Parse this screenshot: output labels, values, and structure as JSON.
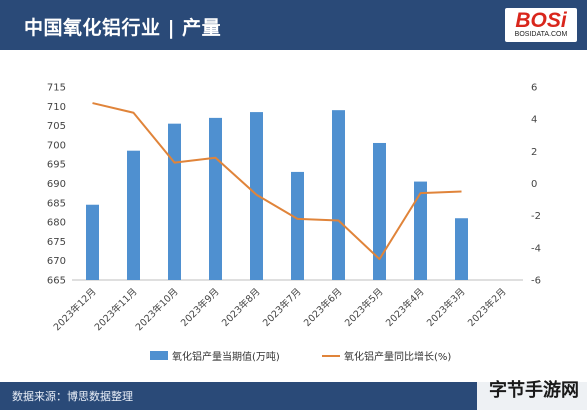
{
  "header": {
    "title": "中国氧化铝行业 | 产量",
    "logo_text": "BOSi",
    "logo_sub": "BOSIDATA.COM"
  },
  "footer": {
    "source": "数据来源：博思数据整理"
  },
  "corner": {
    "text": "字节手游网"
  },
  "colors": {
    "header_bg": "#2a4a78",
    "bar": "#4f90d0",
    "line": "#e0843a",
    "logo_red": "#d9261c"
  },
  "chart_data": {
    "type": "bar",
    "categories": [
      "2023年12月",
      "2023年11月",
      "2023年10月",
      "2023年9月",
      "2023年8月",
      "2023年7月",
      "2023年6月",
      "2023年5月",
      "2023年4月",
      "2023年3月",
      "2023年2月"
    ],
    "series": [
      {
        "name": "氧化铝产量当期值(万吨)",
        "type": "bar",
        "axis": "left",
        "values": [
          684.5,
          698.5,
          705.5,
          707,
          708.5,
          693,
          709,
          700.5,
          690.5,
          681,
          null
        ]
      },
      {
        "name": "氧化铝产量同比增长(%)",
        "type": "line",
        "axis": "right",
        "values": [
          5.0,
          4.4,
          1.3,
          1.6,
          -0.7,
          -2.2,
          -2.3,
          -4.7,
          -0.6,
          -0.5,
          null
        ]
      }
    ],
    "left_axis": {
      "ylim": [
        665,
        715
      ],
      "ticks": [
        665,
        670,
        675,
        680,
        685,
        690,
        695,
        700,
        705,
        710,
        715
      ]
    },
    "right_axis": {
      "ylim": [
        -6,
        6
      ],
      "ticks": [
        6,
        4,
        2,
        0,
        -2,
        -4,
        -6
      ]
    },
    "legend_position": "bottom",
    "grid": false
  }
}
